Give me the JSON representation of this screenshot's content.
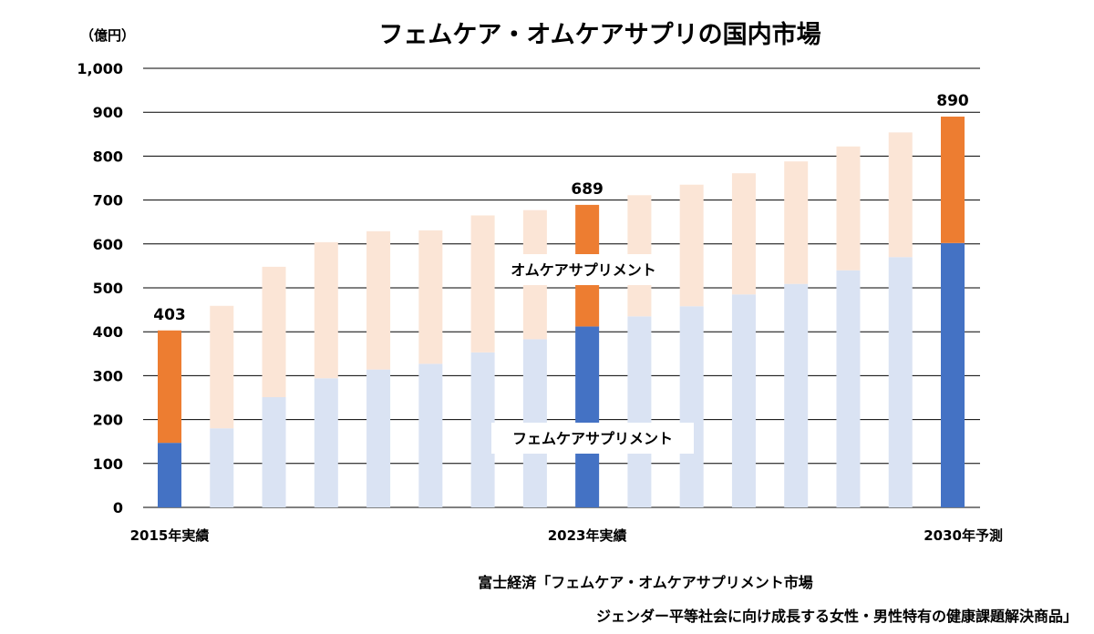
{
  "chart_data": {
    "type": "bar",
    "stacked": true,
    "title": "フェムケア・オムケアサプリの国内市場",
    "unit_label": "（億円）",
    "ylim": [
      0,
      1000
    ],
    "yticks": [
      "0",
      "100",
      "200",
      "300",
      "400",
      "500",
      "600",
      "700",
      "800",
      "900",
      "1,000"
    ],
    "ytick_values": [
      0,
      100,
      200,
      300,
      400,
      500,
      600,
      700,
      800,
      900,
      1000
    ],
    "grid": true,
    "x_labels": [
      {
        "index": 0,
        "text": "2015年実績"
      },
      {
        "index": 8,
        "text": "2023年実績"
      },
      {
        "index": 15,
        "text": "2030年予測"
      }
    ],
    "highlighted_indices": [
      0,
      8,
      15
    ],
    "series": [
      {
        "name": "フェムケアサプリメント",
        "color": "#4472c4",
        "light_color": "#dae3f3",
        "values": [
          147,
          180,
          251,
          294,
          314,
          327,
          353,
          383,
          412,
          435,
          458,
          485,
          509,
          540,
          570,
          602
        ]
      },
      {
        "name": "オムケアサプリメント",
        "color": "#ed7d31",
        "light_color": "#fbe5d6",
        "values": [
          256,
          279,
          297,
          310,
          315,
          304,
          312,
          294,
          277,
          276,
          277,
          276,
          279,
          282,
          284,
          288
        ]
      }
    ],
    "totals": [
      403,
      459,
      548,
      604,
      629,
      631,
      665,
      677,
      689,
      711,
      735,
      761,
      788,
      822,
      854,
      890
    ],
    "data_labels": [
      {
        "index": 0,
        "text": "403"
      },
      {
        "index": 8,
        "text": "689"
      },
      {
        "index": 15,
        "text": "890"
      }
    ]
  },
  "source": {
    "line1": "富士経済「フェムケア・オムケアサプリメント市場",
    "line2": "ジェンダー平等社会に向け成長する女性・男性特有の健康課題解決商品」"
  }
}
